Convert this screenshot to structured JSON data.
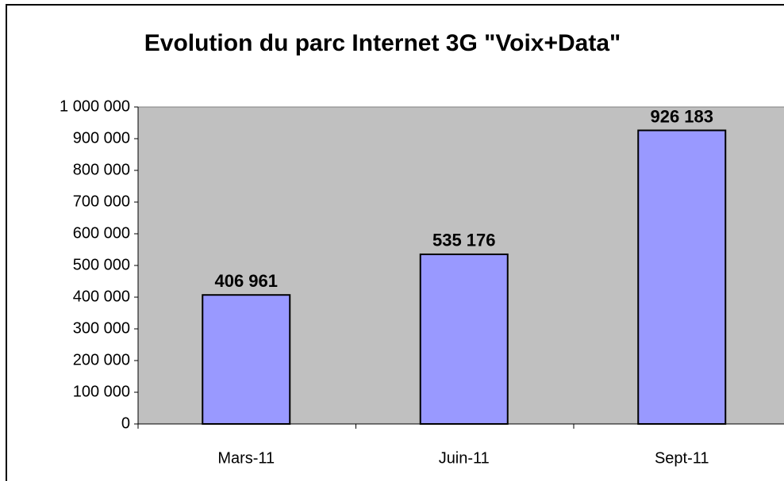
{
  "chart_data": {
    "type": "bar",
    "title": "Evolution du parc Internet 3G \"Voix+Data\"",
    "categories": [
      "Mars-11",
      "Juin-11",
      "Sept-11"
    ],
    "values": [
      406961,
      535176,
      926183
    ],
    "value_labels": [
      "406 961",
      "535 176",
      "926 183"
    ],
    "color": "#9999ff",
    "ylim": [
      0,
      1000000
    ],
    "yticks": [
      0,
      {
        "value": 100000,
        "label": "100 000"
      },
      {
        "value": 200000,
        "label": "200 000"
      },
      {
        "value": 300000,
        "label": "300 000"
      },
      {
        "value": 400000,
        "label": "400 000"
      },
      {
        "value": 500000,
        "label": "500 000"
      },
      {
        "value": 600000,
        "label": "600 000"
      },
      {
        "value": 700000,
        "label": "700 000"
      },
      {
        "value": 800000,
        "label": "800 000"
      },
      {
        "value": 900000,
        "label": "900 000"
      },
      {
        "value": 1000000,
        "label": "1 000 000"
      }
    ],
    "grid": false
  }
}
